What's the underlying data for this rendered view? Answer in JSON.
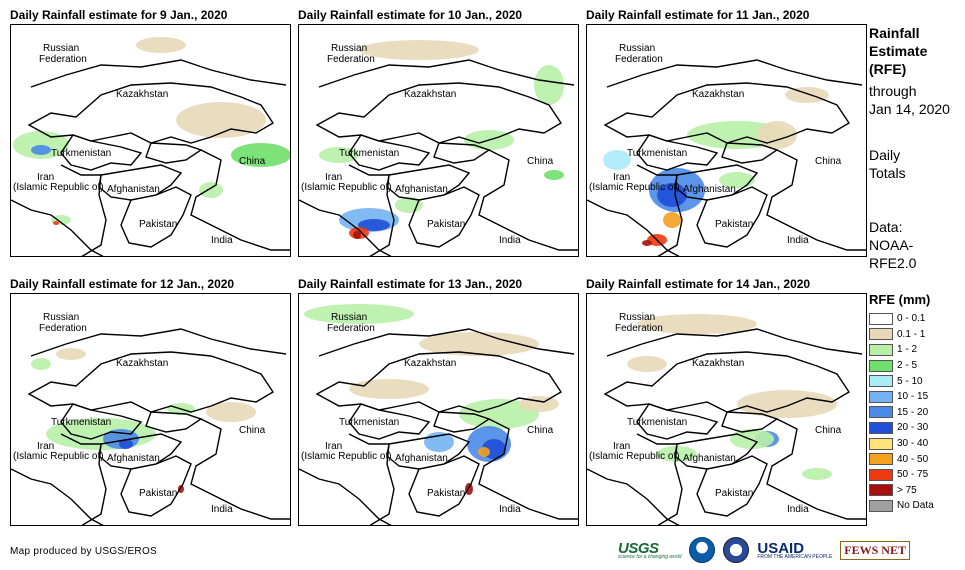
{
  "panels": [
    {
      "title": "Daily Rainfall estimate for 9 Jan., 2020"
    },
    {
      "title": "Daily Rainfall estimate for 10 Jan., 2020"
    },
    {
      "title": "Daily Rainfall estimate for 11 Jan., 2020"
    },
    {
      "title": "Daily Rainfall estimate for 12 Jan., 2020"
    },
    {
      "title": "Daily Rainfall estimate for 13 Jan., 2020"
    },
    {
      "title": "Daily Rainfall estimate for 14 Jan., 2020"
    }
  ],
  "map_labels": {
    "russia_1": "Russian",
    "russia_2": "Federation",
    "kazakhstan": "Kazakhstan",
    "turkmenistan": "Turkmenistan",
    "iran_1": "Iran",
    "iran_2": "(Islamic Republic of)",
    "afghanistan": "Afghanistan",
    "pakistan": "Pakistan",
    "china": "China",
    "india": "India"
  },
  "sidebar": {
    "title_1": "Rainfall",
    "title_2": "Estimate",
    "title_3": "(RFE)",
    "through": "through",
    "date": "Jan 14, 2020",
    "totals_1": "Daily",
    "totals_2": "Totals",
    "data_1": "Data:",
    "data_2": "NOAA-",
    "data_3": "RFE2.0"
  },
  "legend": {
    "title": "RFE (mm)",
    "items": [
      {
        "label": "0 - 0.1",
        "color": "#ffffff"
      },
      {
        "label": "0.1 - 1",
        "color": "#e8d8b8"
      },
      {
        "label": "1 - 2",
        "color": "#b8f0a8"
      },
      {
        "label": "2 - 5",
        "color": "#6fe06a"
      },
      {
        "label": "5 - 10",
        "color": "#a8ecf8"
      },
      {
        "label": "10 - 15",
        "color": "#74b2f2"
      },
      {
        "label": "15 - 20",
        "color": "#4a8ae8"
      },
      {
        "label": "20 - 30",
        "color": "#1f4fd8"
      },
      {
        "label": "30 - 40",
        "color": "#ffe27a"
      },
      {
        "label": "40 - 50",
        "color": "#f4a020"
      },
      {
        "label": "50 - 75",
        "color": "#ee3a10"
      },
      {
        "label": "> 75",
        "color": "#a81010"
      },
      {
        "label": "No Data",
        "color": "#a0a0a0"
      }
    ]
  },
  "credit": "Map produced by USGS/EROS",
  "logos": {
    "usgs": "USGS",
    "usgs_tag": "science for a changing world",
    "usaid": "USAID",
    "usaid_tag": "FROM THE AMERICAN PEOPLE",
    "fews": "FEWS NET"
  },
  "rain_patches": [
    [
      {
        "c": 2,
        "x": 30,
        "y": 120,
        "rx": 28,
        "ry": 14
      },
      {
        "c": 6,
        "x": 30,
        "y": 125,
        "rx": 10,
        "ry": 5
      },
      {
        "c": 3,
        "x": 250,
        "y": 130,
        "rx": 30,
        "ry": 12
      },
      {
        "c": 1,
        "x": 210,
        "y": 95,
        "rx": 45,
        "ry": 18
      },
      {
        "c": 1,
        "x": 150,
        "y": 20,
        "rx": 25,
        "ry": 8
      },
      {
        "c": 2,
        "x": 50,
        "y": 195,
        "rx": 10,
        "ry": 5
      },
      {
        "c": 10,
        "x": 45,
        "y": 198,
        "rx": 3,
        "ry": 2
      },
      {
        "c": 2,
        "x": 200,
        "y": 165,
        "rx": 12,
        "ry": 8
      }
    ],
    [
      {
        "c": 1,
        "x": 120,
        "y": 25,
        "rx": 60,
        "ry": 10
      },
      {
        "c": 2,
        "x": 190,
        "y": 115,
        "rx": 25,
        "ry": 10
      },
      {
        "c": 2,
        "x": 250,
        "y": 60,
        "rx": 15,
        "ry": 20
      },
      {
        "c": 2,
        "x": 40,
        "y": 130,
        "rx": 20,
        "ry": 8
      },
      {
        "c": 5,
        "x": 70,
        "y": 195,
        "rx": 30,
        "ry": 12
      },
      {
        "c": 7,
        "x": 75,
        "y": 200,
        "rx": 16,
        "ry": 6
      },
      {
        "c": 10,
        "x": 60,
        "y": 208,
        "rx": 10,
        "ry": 6
      },
      {
        "c": 11,
        "x": 58,
        "y": 210,
        "rx": 4,
        "ry": 4
      },
      {
        "c": 2,
        "x": 110,
        "y": 180,
        "rx": 14,
        "ry": 8
      },
      {
        "c": 3,
        "x": 255,
        "y": 150,
        "rx": 10,
        "ry": 5
      }
    ],
    [
      {
        "c": 2,
        "x": 150,
        "y": 110,
        "rx": 50,
        "ry": 14
      },
      {
        "c": 1,
        "x": 190,
        "y": 110,
        "rx": 20,
        "ry": 14
      },
      {
        "c": 6,
        "x": 90,
        "y": 165,
        "rx": 28,
        "ry": 22
      },
      {
        "c": 7,
        "x": 85,
        "y": 170,
        "rx": 15,
        "ry": 12
      },
      {
        "c": 9,
        "x": 85,
        "y": 195,
        "rx": 9,
        "ry": 8
      },
      {
        "c": 10,
        "x": 70,
        "y": 215,
        "rx": 10,
        "ry": 6
      },
      {
        "c": 11,
        "x": 60,
        "y": 218,
        "rx": 5,
        "ry": 3
      },
      {
        "c": 4,
        "x": 30,
        "y": 135,
        "rx": 14,
        "ry": 10
      },
      {
        "c": 2,
        "x": 150,
        "y": 155,
        "rx": 18,
        "ry": 8
      },
      {
        "c": 1,
        "x": 220,
        "y": 70,
        "rx": 22,
        "ry": 8
      }
    ],
    [
      {
        "c": 2,
        "x": 90,
        "y": 140,
        "rx": 55,
        "ry": 16
      },
      {
        "c": 6,
        "x": 110,
        "y": 145,
        "rx": 18,
        "ry": 10
      },
      {
        "c": 7,
        "x": 115,
        "y": 150,
        "rx": 7,
        "ry": 5
      },
      {
        "c": 1,
        "x": 220,
        "y": 118,
        "rx": 25,
        "ry": 10
      },
      {
        "c": 2,
        "x": 170,
        "y": 115,
        "rx": 14,
        "ry": 6
      },
      {
        "c": 11,
        "x": 170,
        "y": 195,
        "rx": 3,
        "ry": 4
      },
      {
        "c": 1,
        "x": 60,
        "y": 60,
        "rx": 15,
        "ry": 6
      },
      {
        "c": 2,
        "x": 30,
        "y": 70,
        "rx": 10,
        "ry": 6
      }
    ],
    [
      {
        "c": 2,
        "x": 60,
        "y": 20,
        "rx": 55,
        "ry": 10
      },
      {
        "c": 1,
        "x": 180,
        "y": 50,
        "rx": 60,
        "ry": 12
      },
      {
        "c": 1,
        "x": 90,
        "y": 95,
        "rx": 40,
        "ry": 10
      },
      {
        "c": 2,
        "x": 200,
        "y": 120,
        "rx": 40,
        "ry": 15
      },
      {
        "c": 6,
        "x": 190,
        "y": 150,
        "rx": 22,
        "ry": 18
      },
      {
        "c": 7,
        "x": 195,
        "y": 155,
        "rx": 12,
        "ry": 10
      },
      {
        "c": 9,
        "x": 185,
        "y": 158,
        "rx": 6,
        "ry": 5
      },
      {
        "c": 11,
        "x": 170,
        "y": 195,
        "rx": 4,
        "ry": 6
      },
      {
        "c": 5,
        "x": 140,
        "y": 148,
        "rx": 15,
        "ry": 10
      },
      {
        "c": 1,
        "x": 240,
        "y": 110,
        "rx": 20,
        "ry": 8
      }
    ],
    [
      {
        "c": 1,
        "x": 110,
        "y": 30,
        "rx": 60,
        "ry": 10
      },
      {
        "c": 1,
        "x": 200,
        "y": 110,
        "rx": 50,
        "ry": 14
      },
      {
        "c": 6,
        "x": 180,
        "y": 145,
        "rx": 12,
        "ry": 8
      },
      {
        "c": 2,
        "x": 165,
        "y": 145,
        "rx": 22,
        "ry": 10
      },
      {
        "c": 2,
        "x": 90,
        "y": 160,
        "rx": 20,
        "ry": 8
      },
      {
        "c": 2,
        "x": 230,
        "y": 180,
        "rx": 15,
        "ry": 6
      },
      {
        "c": 1,
        "x": 60,
        "y": 70,
        "rx": 20,
        "ry": 8
      }
    ]
  ]
}
